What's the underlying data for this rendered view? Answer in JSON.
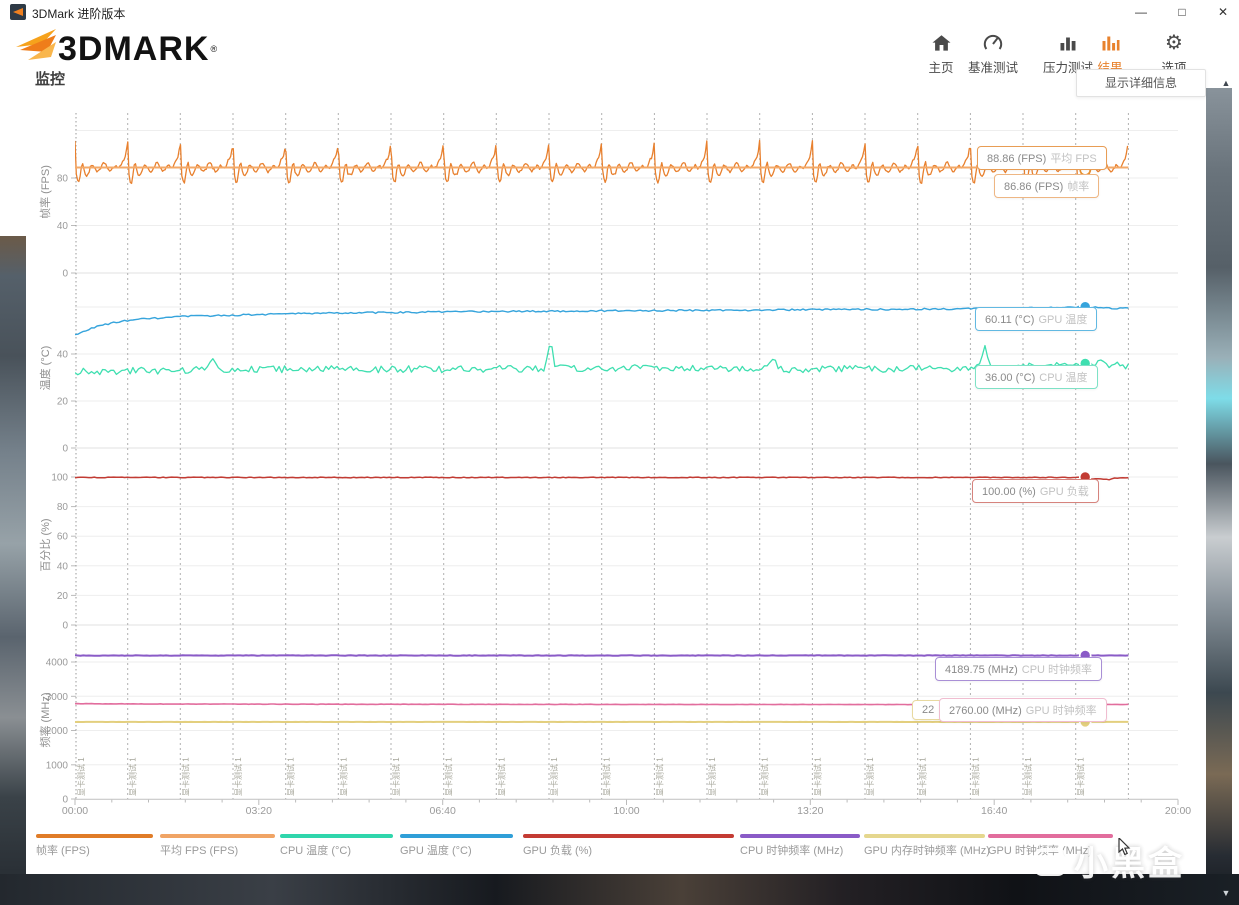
{
  "window": {
    "title": "3DMark 进阶版本"
  },
  "window_controls": {
    "minimize": "—",
    "maximize": "□",
    "close": "✕"
  },
  "brand": {
    "name": "3DMARK",
    "registered": "®"
  },
  "nav": {
    "active_color": "#e8822d",
    "items": [
      {
        "label": "主页",
        "active": false
      },
      {
        "label": "基准测试",
        "active": false
      },
      {
        "label": "压力测试",
        "active": false
      },
      {
        "label": "结果",
        "active": true
      },
      {
        "label": "选项",
        "active": false
      }
    ]
  },
  "tooltip": {
    "text": "显示详细信息"
  },
  "page": {
    "title": "监控"
  },
  "x_axis": {
    "ticks": [
      "00:00",
      "03:20",
      "06:40",
      "10:00",
      "13:20",
      "16:40",
      "20:00"
    ],
    "range_seconds": [
      0,
      1200
    ]
  },
  "loops": 20,
  "loop_label": "显卡测试 1",
  "chart_data": [
    {
      "type": "line",
      "ylabel": "帧率 (FPS)",
      "ylim": [
        0,
        134
      ],
      "yticks": [
        0,
        40,
        80
      ],
      "grid_extra": [
        120
      ],
      "series": [
        {
          "id": "fps",
          "name": "帧率 (FPS)",
          "color": "#e8802e",
          "current": 86.86,
          "width": 1.3,
          "gen": {
            "kind": "pattern",
            "noise": 0.9,
            "loop_pattern": [
              [
                0,
                112
              ],
              [
                0.02,
                84
              ],
              [
                0.05,
                77
              ],
              [
                0.08,
                76
              ],
              [
                0.12,
                90
              ],
              [
                0.15,
                93
              ],
              [
                0.18,
                84
              ],
              [
                0.22,
                82
              ],
              [
                0.26,
                84
              ],
              [
                0.3,
                90
              ],
              [
                0.34,
                91
              ],
              [
                0.38,
                88
              ],
              [
                0.43,
                85
              ],
              [
                0.48,
                87
              ],
              [
                0.53,
                92
              ],
              [
                0.57,
                93
              ],
              [
                0.62,
                88
              ],
              [
                0.67,
                85
              ],
              [
                0.72,
                88
              ],
              [
                0.77,
                91
              ],
              [
                0.82,
                88
              ],
              [
                0.87,
                90
              ],
              [
                0.91,
                95
              ],
              [
                0.95,
                97
              ],
              [
                0.98,
                104
              ],
              [
                1,
                112
              ]
            ]
          }
        },
        {
          "id": "avg-fps",
          "name": "平均 FPS (FPS)",
          "color": "#f3a968",
          "current": 88.86,
          "width": 2,
          "gen": {
            "kind": "constant",
            "value": 88.86,
            "noise": 0
          }
        }
      ],
      "markers": [
        {
          "value": 86.86,
          "fill": "#ffffff",
          "stroke": "#e8912e",
          "r": 5
        }
      ]
    },
    {
      "type": "line",
      "ylabel": "温度 (°C)",
      "ylim": [
        0,
        67
      ],
      "yticks": [
        0,
        20,
        40
      ],
      "grid_extra": [
        60
      ],
      "series": [
        {
          "id": "gpu-temp",
          "name": "GPU 温度 (°C)",
          "color": "#36a4dc",
          "current": 60.11,
          "width": 1.4,
          "gen": {
            "kind": "keypoints",
            "noise": 0.35,
            "keypoints": [
              [
                0,
                48
              ],
              [
                25,
                52
              ],
              [
                60,
                54.5
              ],
              [
                120,
                56
              ],
              [
                240,
                57.2
              ],
              [
                420,
                58
              ],
              [
                600,
                58.4
              ],
              [
                780,
                58.8
              ],
              [
                960,
                59.2
              ],
              [
                1060,
                59.6
              ],
              [
                1100,
                60.1
              ],
              [
                1125,
                59.6
              ],
              [
                1146,
                59.3
              ]
            ]
          }
        },
        {
          "id": "cpu-temp",
          "name": "CPU 温度 (°C)",
          "color": "#3fdfb0",
          "current": 36.0,
          "width": 1.3,
          "gen": {
            "kind": "keypoints",
            "noise": 1.5,
            "keypoints": [
              [
                0,
                32.5
              ],
              [
                200,
                33.5
              ],
              [
                400,
                33.5
              ],
              [
                600,
                34
              ],
              [
                800,
                33.5
              ],
              [
                1000,
                34
              ],
              [
                1080,
                36
              ],
              [
                1146,
                35
              ]
            ],
            "spikes": [
              [
                150,
                38,
                8
              ],
              [
                517,
                46.5,
                6
              ],
              [
                760,
                38,
                6
              ],
              [
                990,
                43,
                8
              ],
              [
                1115,
                38,
                6
              ]
            ]
          }
        }
      ],
      "markers": [
        {
          "value": 60.11,
          "fill": "#36a4dc"
        },
        {
          "value": 36.0,
          "fill": "#3fdfb0"
        }
      ]
    },
    {
      "type": "line",
      "ylabel": "百分比 (%)",
      "ylim": [
        0,
        107
      ],
      "yticks": [
        0,
        20,
        40,
        60,
        80,
        100
      ],
      "grid_extra": [],
      "series": [
        {
          "id": "gpu-load",
          "name": "GPU 负载 (%)",
          "color": "#c23b33",
          "current": 100.0,
          "width": 1.5,
          "gen": {
            "kind": "keypoints",
            "noise": 0.25,
            "max": 100,
            "keypoints": [
              [
                0,
                99.7
              ],
              [
                1100,
                99.7
              ],
              [
                1120,
                98.6
              ],
              [
                1130,
                99.3
              ],
              [
                1146,
                99.2
              ]
            ],
            "spikes": [
              [
                300,
                99.2,
                4
              ],
              [
                700,
                99.3,
                4
              ],
              [
                1107,
                98.8,
                5
              ],
              [
                1125,
                98.3,
                6
              ]
            ]
          }
        }
      ],
      "markers": [
        {
          "value": 100.0,
          "fill": "#c23b33"
        }
      ]
    },
    {
      "type": "line",
      "ylabel": "频率 (MHz)",
      "ylim": [
        0,
        4555
      ],
      "yticks": [
        0,
        1000,
        2000,
        3000,
        4000
      ],
      "grid_extra": [],
      "series": [
        {
          "id": "cpu-clock",
          "name": "CPU 时钟频率 (MHz)",
          "color": "#8a5bc7",
          "current": 4189.75,
          "width": 2,
          "gen": {
            "kind": "constant",
            "value": 4189.75,
            "noise": 6
          }
        },
        {
          "id": "gpu-clock",
          "name": "GPU 时钟频率 (MHz)",
          "color": "#e26d9d",
          "current": 2760.0,
          "width": 1.6,
          "gen": {
            "kind": "keypoints",
            "noise": 5,
            "keypoints": [
              [
                0,
                2782
              ],
              [
                120,
                2772
              ],
              [
                400,
                2764
              ],
              [
                700,
                2760
              ],
              [
                1000,
                2757
              ],
              [
                1146,
                2760
              ]
            ]
          }
        },
        {
          "id": "gpu-mem-clock",
          "name": "GPU 内存时钟频率 (MHz)",
          "color": "#e3cf7e",
          "current": 2250.0,
          "width": 2,
          "gen": {
            "kind": "constant",
            "value": 2250,
            "noise": 1.5
          }
        }
      ],
      "markers": [
        {
          "value": 4189.75,
          "fill": "#8a5bc7"
        },
        {
          "value": 2760.0,
          "fill": "#f2b263"
        },
        {
          "value": 2250.0,
          "fill": "#e3cf7e"
        }
      ]
    }
  ],
  "badges": [
    {
      "value": "88.86 (FPS)",
      "name": "平均 FPS",
      "border": "#e89d55"
    },
    {
      "value": "86.86 (FPS)",
      "name": "帧率",
      "border": "#eeb683"
    },
    {
      "value": "60.11 (°C)",
      "name": "GPU 温度",
      "border": "#62b9e2"
    },
    {
      "value": "36.00 (°C)",
      "name": "CPU 温度",
      "border": "#7ee2c6"
    },
    {
      "value": "100.00 (%)",
      "name": "GPU 负载",
      "border": "#d6837d"
    },
    {
      "value": "4189.75 (MHz)",
      "name": "CPU 时钟频率",
      "border": "#a98fd6"
    },
    {
      "value": "2760.00 (MHz)",
      "name": "GPU 时钟频率",
      "border": "#f0bdd0"
    }
  ],
  "hidden_badge": {
    "text": "22",
    "border": "#e8d9a0"
  },
  "legend": {
    "items": [
      {
        "label": "帧率 (FPS)",
        "color": "#e07c28"
      },
      {
        "label": "平均 FPS (FPS)",
        "color": "#f0a465"
      },
      {
        "label": "CPU 温度 (°C)",
        "color": "#2fd6ac"
      },
      {
        "label": "GPU 温度 (°C)",
        "color": "#2f9fd8"
      },
      {
        "label": "GPU 负载 (%)",
        "color": "#c43b33"
      },
      {
        "label": "CPU 时钟频率 (MHz)",
        "color": "#8a5bc7"
      },
      {
        "label": "GPU 内存时钟频率 (MHz)",
        "color": "#e5d78e"
      },
      {
        "label": "GPU 时钟频率 (MHz)",
        "color": "#e26d9d"
      }
    ]
  },
  "watermark": {
    "text": "小黑盒"
  },
  "scrollbar": {
    "up": "▲",
    "down": "▼"
  }
}
